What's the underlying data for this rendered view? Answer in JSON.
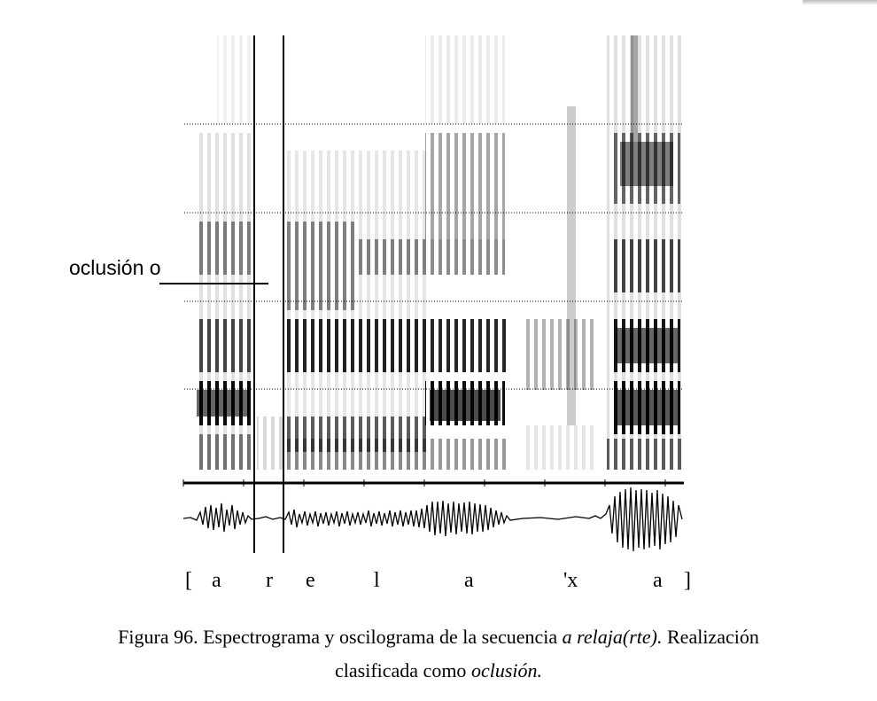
{
  "figure": {
    "annotation_label": "oclusión o",
    "segments": [
      "[",
      "a",
      "r",
      "e",
      "l",
      "a",
      "'x",
      "a",
      "]"
    ],
    "caption": {
      "line1_prefix": "Figura 96. Espectrograma y oscilograma de la secuencia ",
      "line1_italic": "a relaja(rte).",
      "line1_suffix": " Realización",
      "line2_prefix": "clasificada como ",
      "line2_italic": "oclusión."
    }
  },
  "colors": {
    "ink": "#000000",
    "background": "#ffffff"
  }
}
